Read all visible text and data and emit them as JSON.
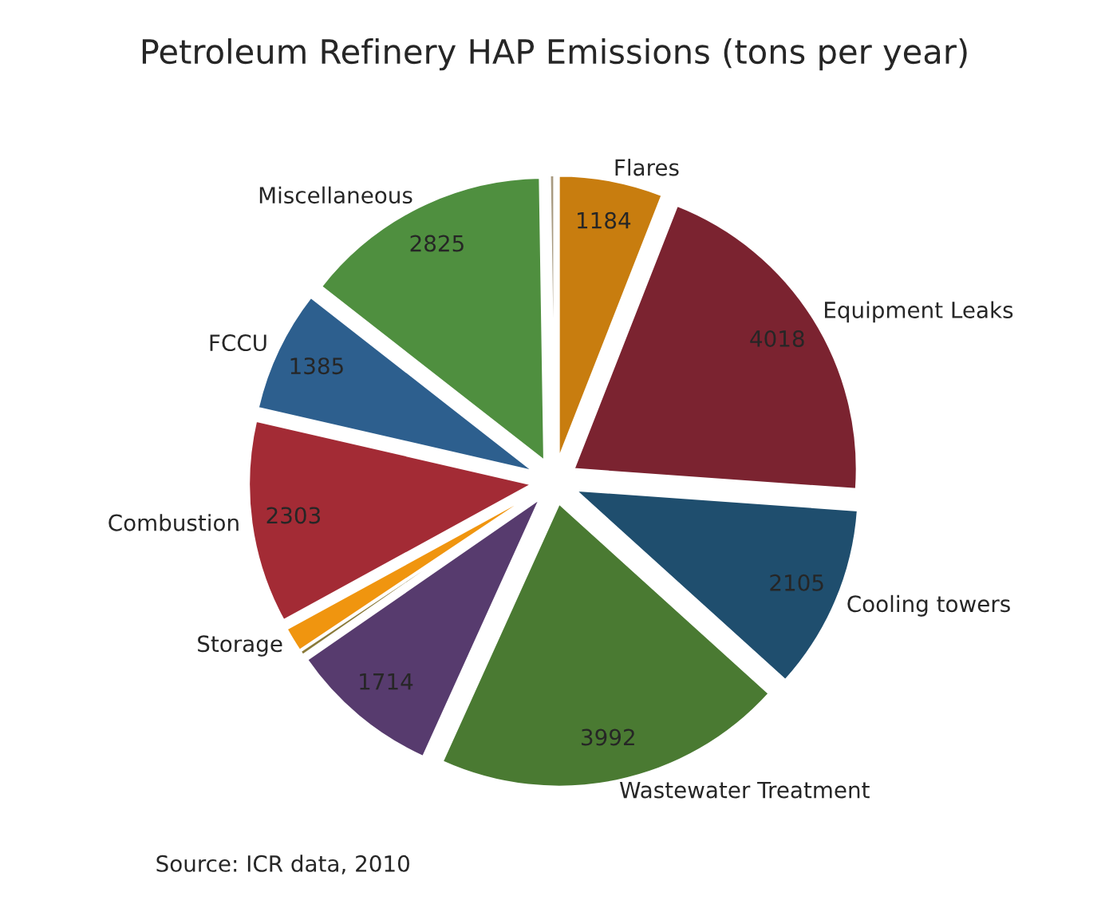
{
  "chart_data": {
    "type": "pie",
    "title": "Petroleum Refinery HAP Emissions (tons per year)",
    "categories": [
      "Flares",
      "Equipment Leaks",
      "Cooling towers",
      "Wastewater Treatment",
      null,
      null,
      "Storage",
      "Combustion",
      "FCCU",
      "Miscellaneous",
      null
    ],
    "values": [
      1184,
      4018,
      2105,
      3992,
      1714,
      50,
      280,
      2303,
      1385,
      2825,
      50
    ],
    "value_labels": [
      "1184",
      "4018",
      "2105",
      "3992",
      "1714",
      null,
      null,
      "2303",
      "1385",
      "2825",
      null
    ],
    "colors": [
      "#c87d0f",
      "#7b2330",
      "#1f4e6e",
      "#4a7a32",
      "#573b6e",
      "#8a7a3a",
      "#f0950f",
      "#a32b35",
      "#2d5f8e",
      "#4f8f3f",
      "#a89a80"
    ],
    "annotations": [
      "Source: ICR data, 2010"
    ],
    "legend": false
  }
}
